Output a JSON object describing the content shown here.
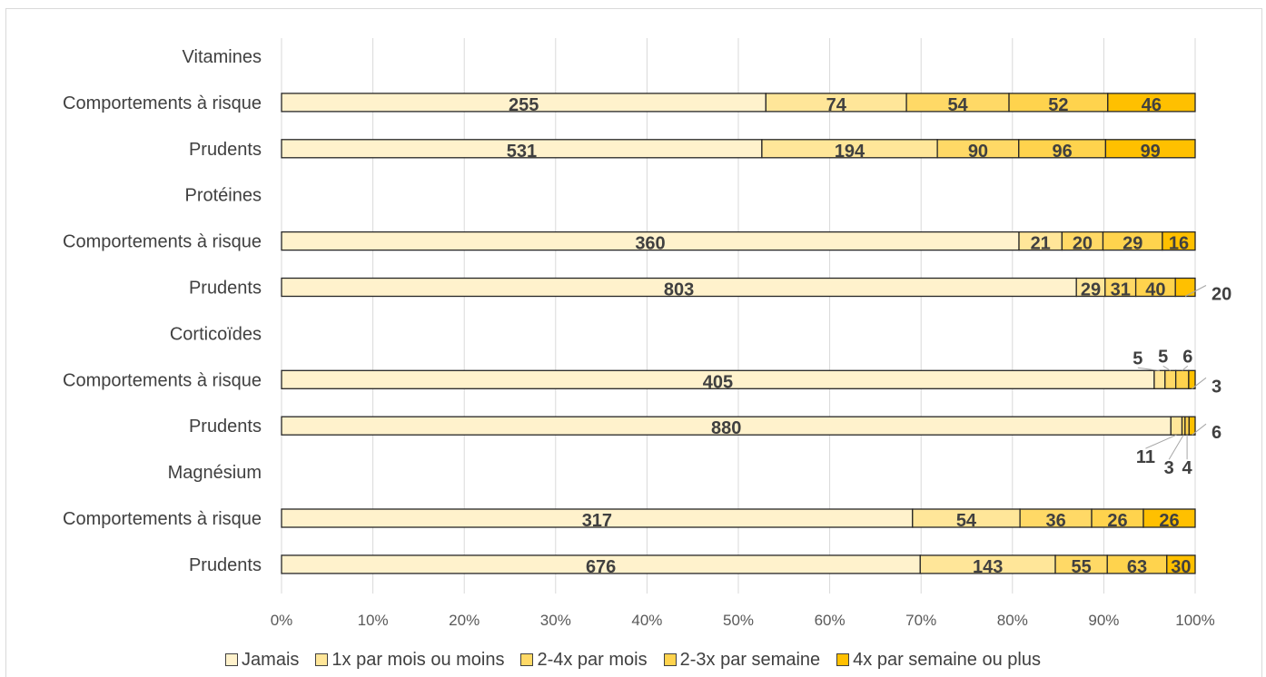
{
  "chart_data": {
    "type": "bar",
    "orientation": "horizontal",
    "stacked": "percent",
    "categories": [
      "Vitamines",
      "Comportements à risque",
      "Prudents",
      "Protéines",
      "Comportements à risque",
      "Prudents",
      "Corticoïdes",
      "Comportements à risque",
      "Prudents",
      "Magnésium",
      "Comportements à risque",
      "Prudents"
    ],
    "series": [
      {
        "name": "Jamais",
        "color": "#fff2cc",
        "values": [
          null,
          255,
          531,
          null,
          360,
          803,
          null,
          405,
          880,
          null,
          317,
          676
        ]
      },
      {
        "name": "1x par mois ou moins",
        "color": "#ffe699",
        "values": [
          null,
          74,
          194,
          null,
          21,
          29,
          null,
          5,
          11,
          null,
          54,
          143
        ]
      },
      {
        "name": "2-4x par mois",
        "color": "#ffd966",
        "values": [
          null,
          54,
          90,
          null,
          20,
          31,
          null,
          5,
          3,
          null,
          36,
          55
        ]
      },
      {
        "name": "2-3x par semaine",
        "color": "#ffd34d",
        "values": [
          null,
          52,
          96,
          null,
          29,
          40,
          null,
          6,
          4,
          null,
          26,
          63
        ]
      },
      {
        "name": "4x par semaine ou plus",
        "color": "#ffc000",
        "values": [
          null,
          46,
          99,
          null,
          16,
          20,
          null,
          3,
          6,
          null,
          26,
          30
        ]
      }
    ],
    "xlim": [
      "0%",
      "100%"
    ],
    "x_ticks": [
      "0%",
      "10%",
      "20%",
      "30%",
      "40%",
      "50%",
      "60%",
      "70%",
      "80%",
      "90%",
      "100%"
    ],
    "grid": "vertical",
    "legend_position": "bottom"
  }
}
